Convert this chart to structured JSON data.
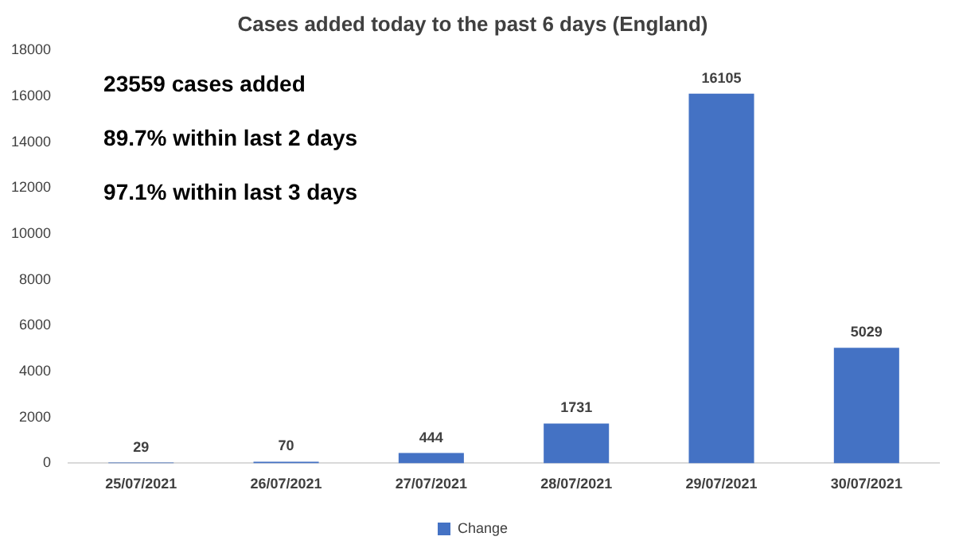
{
  "chart_data": {
    "type": "bar",
    "title": "Cases added today to the past 6 days (England)",
    "categories": [
      "25/07/2021",
      "26/07/2021",
      "27/07/2021",
      "28/07/2021",
      "29/07/2021",
      "30/07/2021"
    ],
    "series": [
      {
        "name": "Change",
        "color": "#4472c4",
        "values": [
          29,
          70,
          444,
          1731,
          16105,
          5029
        ]
      }
    ],
    "ylim": [
      0,
      18000
    ],
    "yticks": [
      0,
      2000,
      4000,
      6000,
      8000,
      10000,
      12000,
      14000,
      16000,
      18000
    ],
    "grid": false,
    "legend": "bottom",
    "data_labels": true,
    "annotations": [
      "23559 cases added",
      "89.7% within last 2 days",
      "97.1% within last 3 days"
    ]
  }
}
